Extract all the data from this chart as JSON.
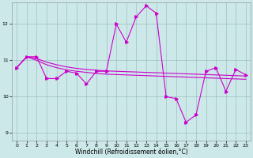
{
  "xlabel": "Windchill (Refroidissement éolien,°C)",
  "background_color": "#cce8e8",
  "line_color": "#cc00cc",
  "xlim": [
    -0.5,
    23.5
  ],
  "ylim": [
    8.8,
    12.6
  ],
  "yticks": [
    9,
    10,
    11,
    12
  ],
  "xticks": [
    0,
    1,
    2,
    3,
    4,
    5,
    6,
    7,
    8,
    9,
    10,
    11,
    12,
    13,
    14,
    15,
    16,
    17,
    18,
    19,
    20,
    21,
    22,
    23
  ],
  "series1_x": [
    0,
    1,
    2,
    3,
    4,
    5,
    6,
    7,
    8,
    9,
    10,
    11,
    12,
    13,
    14,
    15,
    16,
    17,
    18,
    19,
    20,
    21,
    22,
    23
  ],
  "series1_y": [
    10.8,
    11.1,
    11.1,
    10.5,
    10.5,
    10.7,
    10.65,
    10.35,
    10.7,
    10.7,
    12.0,
    11.5,
    12.2,
    12.5,
    12.3,
    10.0,
    9.95,
    9.3,
    9.5,
    10.7,
    10.8,
    10.15,
    10.75,
    10.6
  ],
  "series2_x": [
    0,
    1,
    2,
    3,
    4,
    5,
    6,
    7,
    8,
    9,
    10,
    11,
    12,
    13,
    14,
    15,
    16,
    17,
    18,
    19,
    20,
    21,
    22,
    23
  ],
  "series2_y": [
    10.8,
    11.1,
    11.05,
    10.95,
    10.88,
    10.82,
    10.78,
    10.75,
    10.73,
    10.71,
    10.7,
    10.69,
    10.68,
    10.67,
    10.66,
    10.65,
    10.64,
    10.63,
    10.62,
    10.61,
    10.6,
    10.59,
    10.58,
    10.57
  ],
  "series3_x": [
    0,
    1,
    2,
    3,
    4,
    5,
    6,
    7,
    8,
    9,
    10,
    11,
    12,
    13,
    14,
    15,
    16,
    17,
    18,
    19,
    20,
    21,
    22,
    23
  ],
  "series3_y": [
    10.8,
    11.1,
    11.0,
    10.88,
    10.8,
    10.74,
    10.7,
    10.67,
    10.64,
    10.62,
    10.61,
    10.6,
    10.59,
    10.58,
    10.57,
    10.56,
    10.55,
    10.54,
    10.53,
    10.52,
    10.51,
    10.5,
    10.49,
    10.48
  ]
}
